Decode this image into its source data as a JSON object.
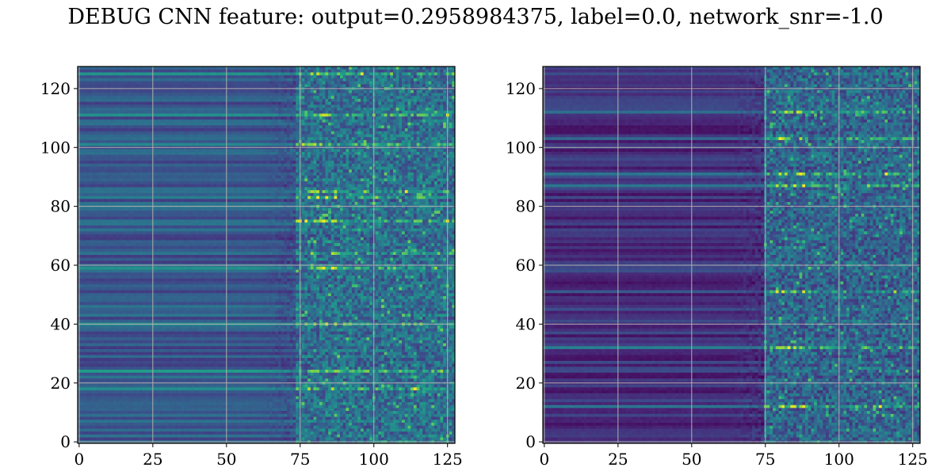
{
  "title": "DEBUG CNN feature: output=0.2958984375, label=0.0, network_snr=-1.0",
  "colormap": [
    "#440154",
    "#482878",
    "#3e4989",
    "#31688e",
    "#26828e",
    "#1f9e89",
    "#35b779",
    "#6ece58",
    "#b5de2b",
    "#fde725"
  ],
  "chart_data": [
    {
      "type": "heatmap",
      "rows": 128,
      "cols": 128,
      "xlim": [
        -0.5,
        127.5
      ],
      "ylim": [
        127.5,
        -0.5
      ],
      "xticks": [
        0,
        25,
        50,
        75,
        100,
        125
      ],
      "xtick_labels": [
        "0",
        "25",
        "50",
        "75",
        "100",
        "125"
      ],
      "yticks": [
        0,
        20,
        40,
        60,
        80,
        100,
        120
      ],
      "ytick_labels": [
        "0",
        "20",
        "40",
        "60",
        "80",
        "100",
        "120"
      ],
      "grid": true,
      "value_range": [
        0,
        1
      ],
      "noise_start_col": 74,
      "bright_rows": [
        2,
        16,
        26,
        42,
        44,
        52,
        63,
        68,
        87,
        103,
        109
      ],
      "smooth_level": 0.28
    },
    {
      "type": "heatmap",
      "rows": 128,
      "cols": 128,
      "xlim": [
        -0.5,
        127.5
      ],
      "ylim": [
        127.5,
        -0.5
      ],
      "xticks": [
        0,
        25,
        50,
        75,
        100,
        125
      ],
      "xtick_labels": [
        "0",
        "25",
        "50",
        "75",
        "100",
        "125"
      ],
      "yticks": [
        0,
        20,
        40,
        60,
        80,
        100,
        120
      ],
      "ytick_labels": [
        "0",
        "20",
        "40",
        "60",
        "80",
        "100",
        "120"
      ],
      "grid": true,
      "value_range": [
        0,
        1
      ],
      "noise_start_col": 75,
      "bright_rows": [
        15,
        24,
        36,
        40,
        76,
        95,
        115
      ],
      "smooth_level": 0.14
    }
  ]
}
